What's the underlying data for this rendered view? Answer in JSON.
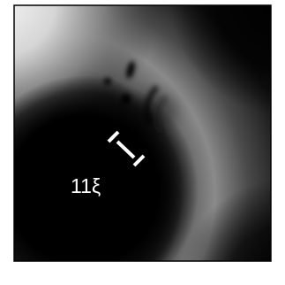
{
  "annotation": {
    "scale_label": "11ξ"
  },
  "colors": {
    "background": "#ffffff",
    "frame": "#000000",
    "scale_bar": "#ffffff",
    "label": "#ffffff"
  }
}
